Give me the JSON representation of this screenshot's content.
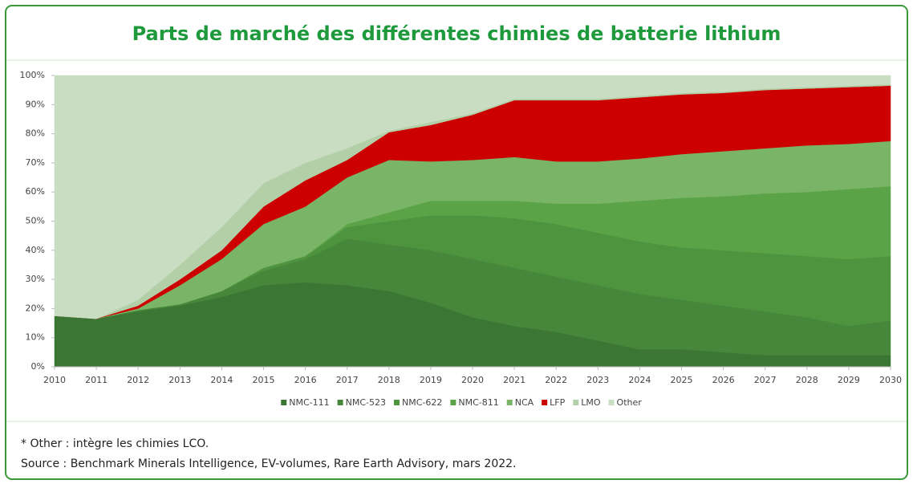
{
  "chart_data": {
    "type": "stacked_area",
    "title": "Parts de marché des différentes chimies de batterie lithium",
    "x": [
      2010,
      2011,
      2012,
      2013,
      2014,
      2015,
      2016,
      2017,
      2018,
      2019,
      2020,
      2021,
      2022,
      2023,
      2024,
      2025,
      2026,
      2027,
      2028,
      2029,
      2030
    ],
    "xlim": [
      2010,
      2030
    ],
    "xticks": [
      2010,
      2011,
      2012,
      2013,
      2014,
      2015,
      2016,
      2017,
      2018,
      2019,
      2020,
      2021,
      2022,
      2023,
      2024,
      2025,
      2026,
      2027,
      2028,
      2029,
      2030
    ],
    "ylim": [
      0,
      100
    ],
    "yticks": [
      {
        "value": 0,
        "label": "0%"
      },
      {
        "value": 10,
        "label": "10%"
      },
      {
        "value": 20,
        "label": "20%"
      },
      {
        "value": 30,
        "label": "30%"
      },
      {
        "value": 40,
        "label": "40%"
      },
      {
        "value": 50,
        "label": "50%"
      },
      {
        "value": 60,
        "label": "60%"
      },
      {
        "value": 70,
        "label": "70%"
      },
      {
        "value": 80,
        "label": "80%"
      },
      {
        "value": 90,
        "label": "90%"
      },
      {
        "value": 100,
        "label": "100%"
      }
    ],
    "legend": "bottom",
    "series": [
      {
        "name": "NMC-111",
        "color": "#3b7634",
        "values": [
          17.5,
          16.5,
          19,
          21,
          24,
          28,
          29,
          28,
          26,
          22,
          17,
          14,
          12,
          9,
          6,
          6,
          5,
          4,
          4,
          4,
          4
        ]
      },
      {
        "name": "NMC-523",
        "color": "#47873b",
        "values": [
          0,
          0,
          0.5,
          0.5,
          2,
          5,
          8,
          16,
          16,
          18,
          20,
          20,
          19,
          19,
          19,
          17,
          16,
          15,
          13,
          10,
          12
        ]
      },
      {
        "name": "NMC-622",
        "color": "#4e943f",
        "values": [
          0,
          0,
          0,
          0,
          0,
          1,
          1,
          4,
          8,
          12,
          15,
          17,
          18,
          18,
          18,
          18,
          19,
          20,
          21,
          23,
          22
        ]
      },
      {
        "name": "NMC-811",
        "color": "#5aa346",
        "values": [
          0,
          0,
          0,
          0,
          0,
          0,
          0,
          1,
          3,
          5,
          5,
          6,
          7,
          10,
          14,
          17,
          18.5,
          20.5,
          22,
          24,
          24
        ]
      },
      {
        "name": "NCA",
        "color": "#7ab466",
        "values": [
          0,
          0,
          0.5,
          6.5,
          11,
          15,
          17,
          16,
          18,
          13.5,
          14,
          15,
          14.5,
          14.5,
          14.5,
          15,
          15.5,
          15.5,
          16,
          15.5,
          15.5
        ]
      },
      {
        "name": "LFP",
        "color": "#cc0000",
        "values": [
          0,
          0,
          1,
          2,
          3,
          6,
          9,
          6,
          9.5,
          12.5,
          15.5,
          19.5,
          21,
          21,
          21,
          20.5,
          20,
          20,
          19.5,
          19.5,
          19
        ]
      },
      {
        "name": "LMO",
        "color": "#b2cfa7",
        "values": [
          0,
          0,
          2,
          5,
          8,
          8,
          6,
          4,
          0.5,
          1,
          0.5,
          0.5,
          0.5,
          0.5,
          0.5,
          0.5,
          0.5,
          0.5,
          0.5,
          0.5,
          0.5
        ]
      },
      {
        "name": "Other",
        "color": "#c8ddc2",
        "values": [
          82.5,
          83.5,
          77,
          65,
          52,
          37,
          30,
          25,
          19,
          16,
          13,
          8,
          8,
          8,
          7,
          6,
          5.5,
          4.5,
          4,
          3.5,
          3
        ]
      }
    ]
  },
  "footnotes": [
    "* Other : intègre les chimies LCO.",
    "Source : Benchmark Minerals Intelligence, EV-volumes, Rare Earth Advisory, mars 2022."
  ]
}
